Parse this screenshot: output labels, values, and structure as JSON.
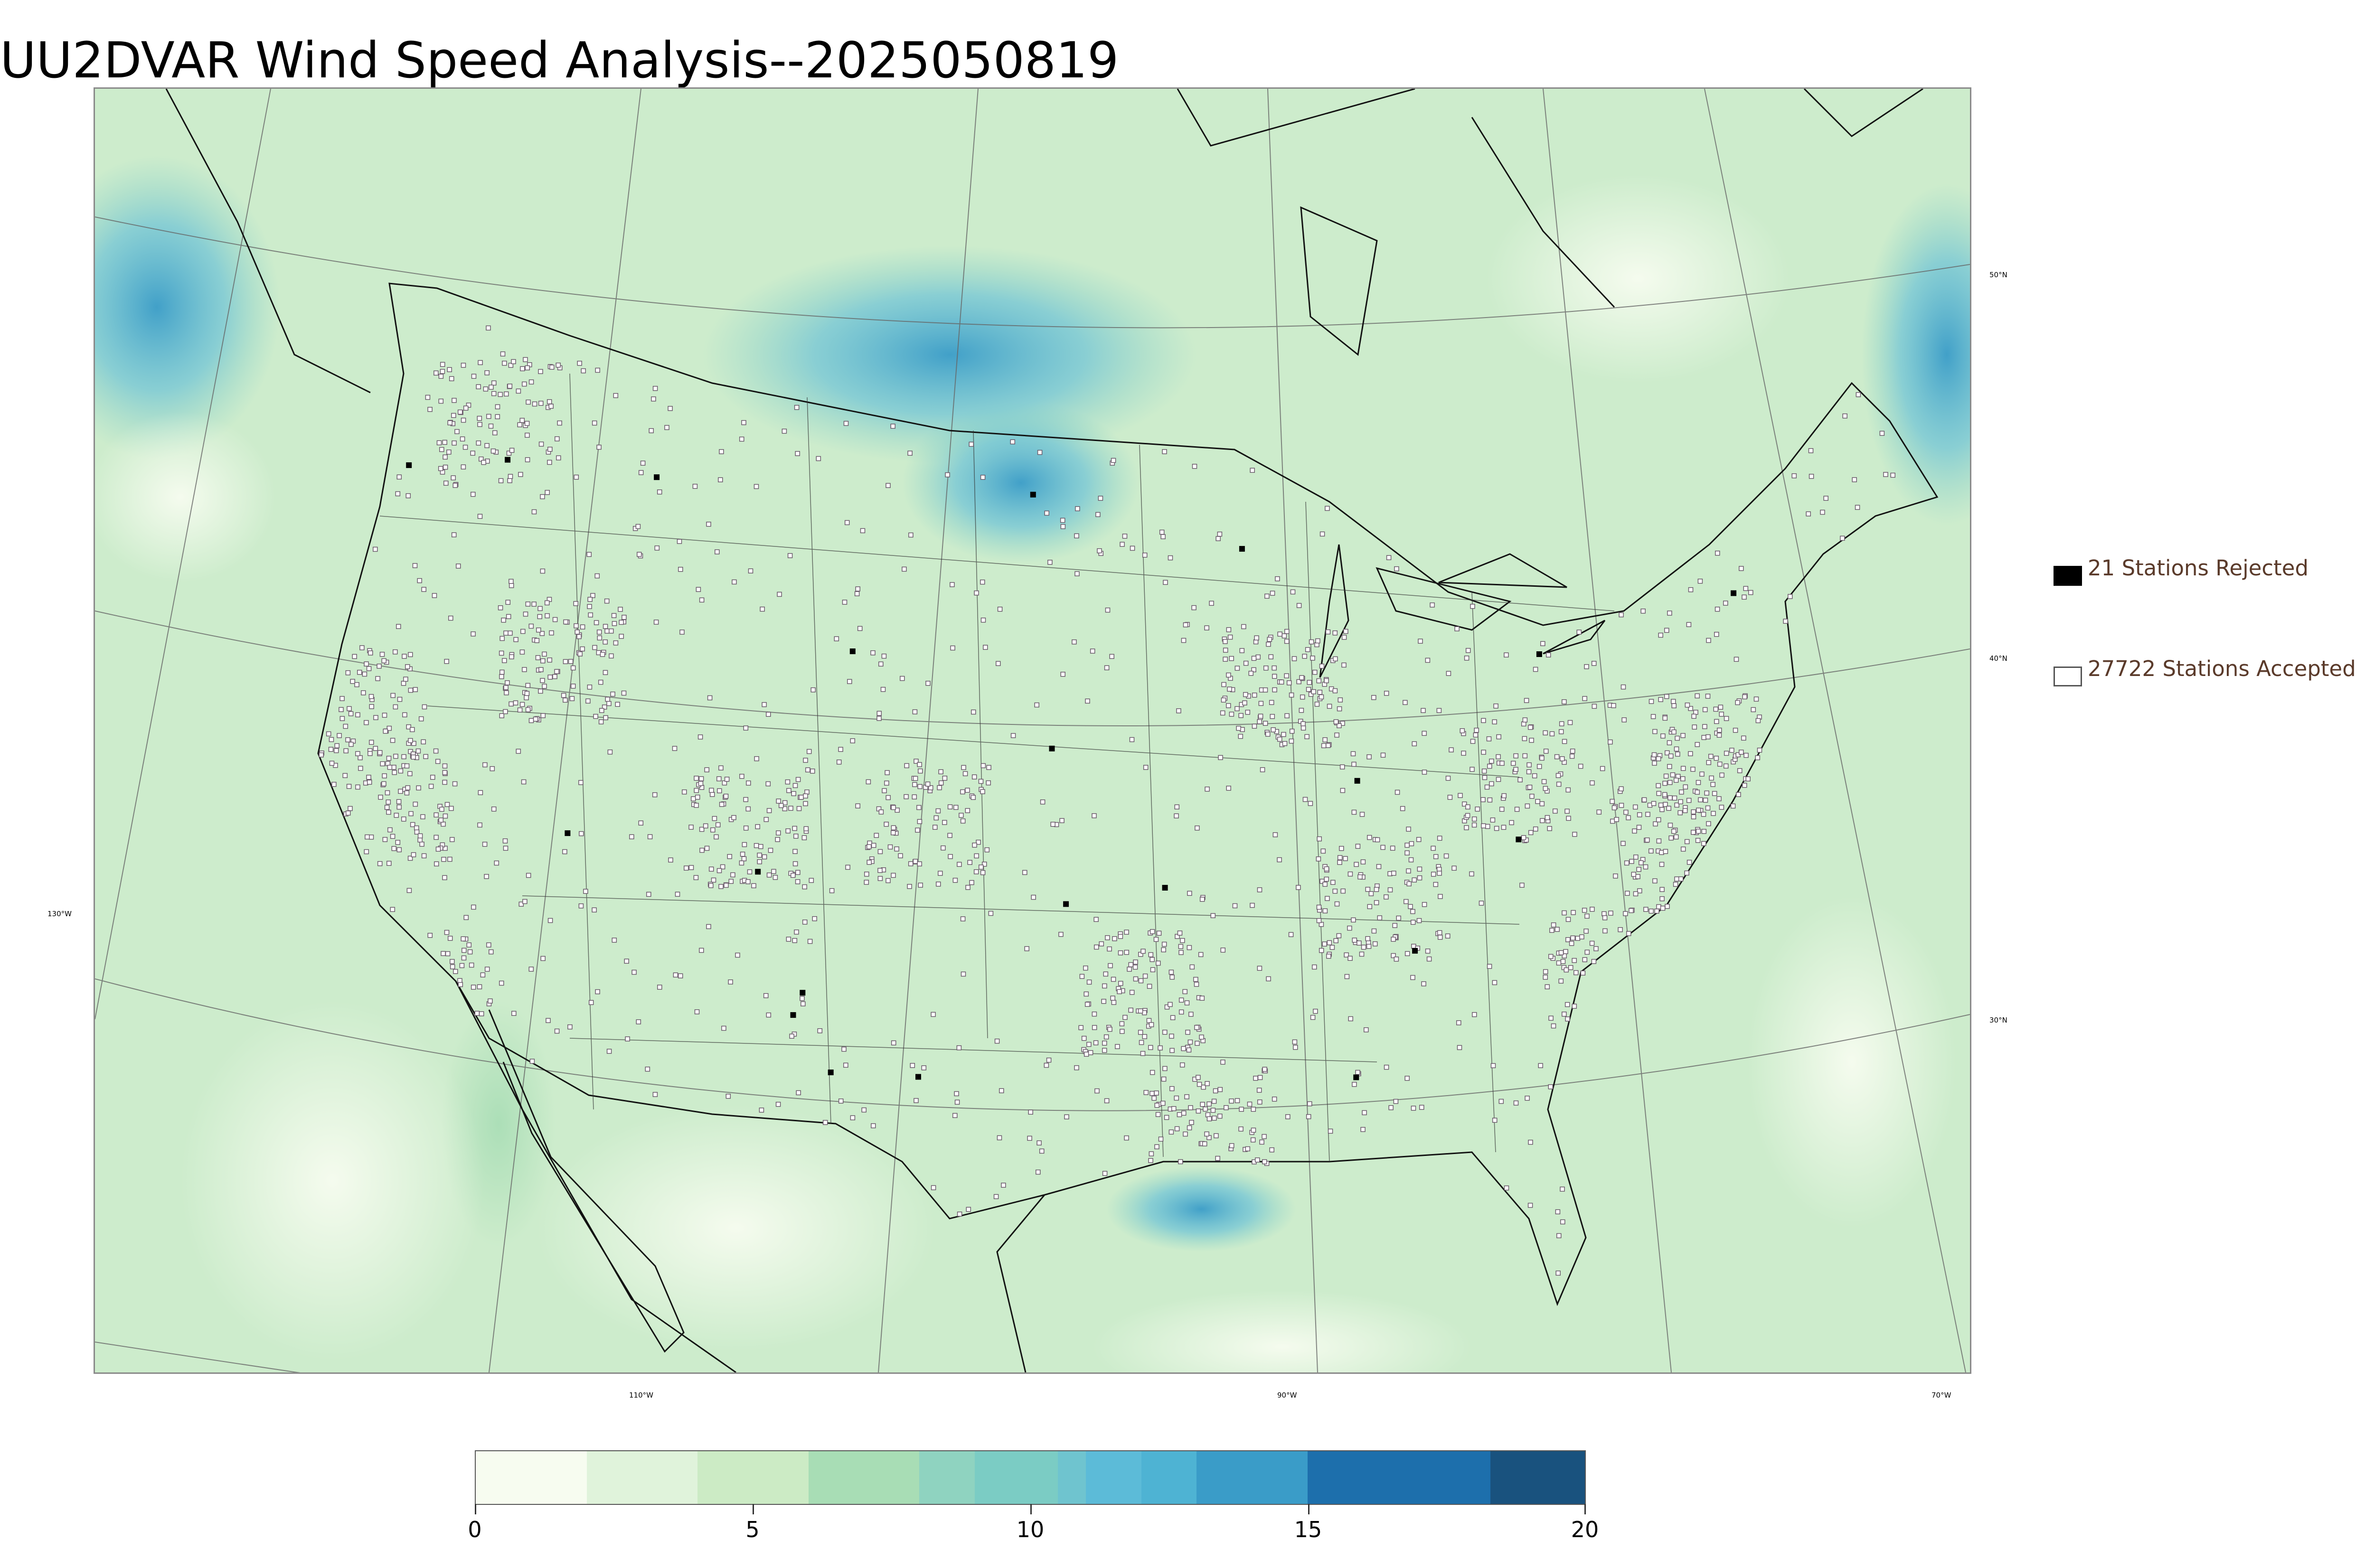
{
  "title": "UU2DVAR Wind Speed Analysis--2025050819",
  "map": {
    "projection": "lambert-conformal",
    "basemap_color": "#d4efd2",
    "ocean_color": "#c2e8c4",
    "strong_wind_color": "#4aa8d4",
    "longitude_labels": [
      "110°W",
      "90°W",
      "70°W"
    ],
    "latitude_labels_right": [
      "50°N",
      "40°N",
      "30°N"
    ],
    "latitude_labels_left": [
      "130°W"
    ]
  },
  "legend": {
    "rejected": {
      "label": "21 Stations Rejected",
      "marker": "filled-black-square",
      "count": 21
    },
    "accepted": {
      "label": "27722 Stations Accepted",
      "marker": "open-square",
      "count": 27722
    }
  },
  "colorbar": {
    "min": 0,
    "max": 20,
    "tick_labels": [
      "0",
      "5",
      "10",
      "15",
      "20"
    ],
    "tick_values": [
      0,
      5,
      10,
      15,
      20
    ],
    "bands": [
      {
        "from": 0,
        "to": 2,
        "color": "#f7fcf0"
      },
      {
        "from": 2,
        "to": 4,
        "color": "#e0f3db"
      },
      {
        "from": 4,
        "to": 6,
        "color": "#ccebc5"
      },
      {
        "from": 6,
        "to": 8,
        "color": "#a8ddb5"
      },
      {
        "from": 8,
        "to": 9,
        "color": "#8fd3c0"
      },
      {
        "from": 9,
        "to": 10.5,
        "color": "#7bccc4"
      },
      {
        "from": 10.5,
        "to": 11,
        "color": "#6fc4cf"
      },
      {
        "from": 11,
        "to": 12,
        "color": "#5cbbd8"
      },
      {
        "from": 12,
        "to": 13,
        "color": "#4eb3d3"
      },
      {
        "from": 13,
        "to": 15,
        "color": "#3a9cc8"
      },
      {
        "from": 15,
        "to": 18.3,
        "color": "#1d6fac"
      },
      {
        "from": 18.3,
        "to": 20,
        "color": "#19527e"
      }
    ]
  }
}
